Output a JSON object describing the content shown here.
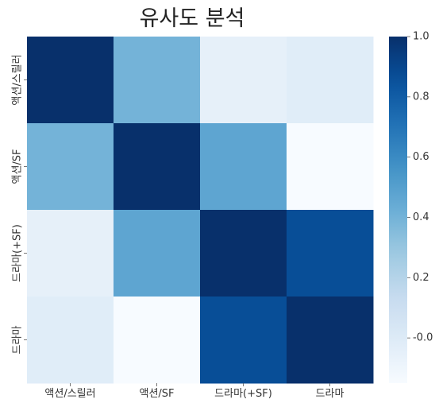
{
  "chart_data": {
    "type": "heatmap",
    "title": "유사도 분석",
    "x_categories": [
      "액션/스릴러",
      "액션/SF",
      "드라마(+SF)",
      "드라마"
    ],
    "y_categories": [
      "액션/스릴러",
      "액션/SF",
      "드라마(+SF)",
      "드라마"
    ],
    "values": [
      [
        1.0,
        0.4,
        -0.05,
        -0.02
      ],
      [
        0.4,
        1.0,
        0.47,
        -0.15
      ],
      [
        -0.05,
        0.47,
        1.0,
        0.87
      ],
      [
        -0.02,
        -0.15,
        0.87,
        1.0
      ]
    ],
    "colormap": "Blues",
    "vmin": -0.15,
    "vmax": 1.0,
    "colorbar": {
      "ticks": [
        "-0.0",
        "0.2",
        "0.4",
        "0.6",
        "0.8",
        "1.0"
      ],
      "tick_values": [
        0.0,
        0.2,
        0.4,
        0.6,
        0.8,
        1.0
      ],
      "position": "right"
    },
    "grid": false
  }
}
